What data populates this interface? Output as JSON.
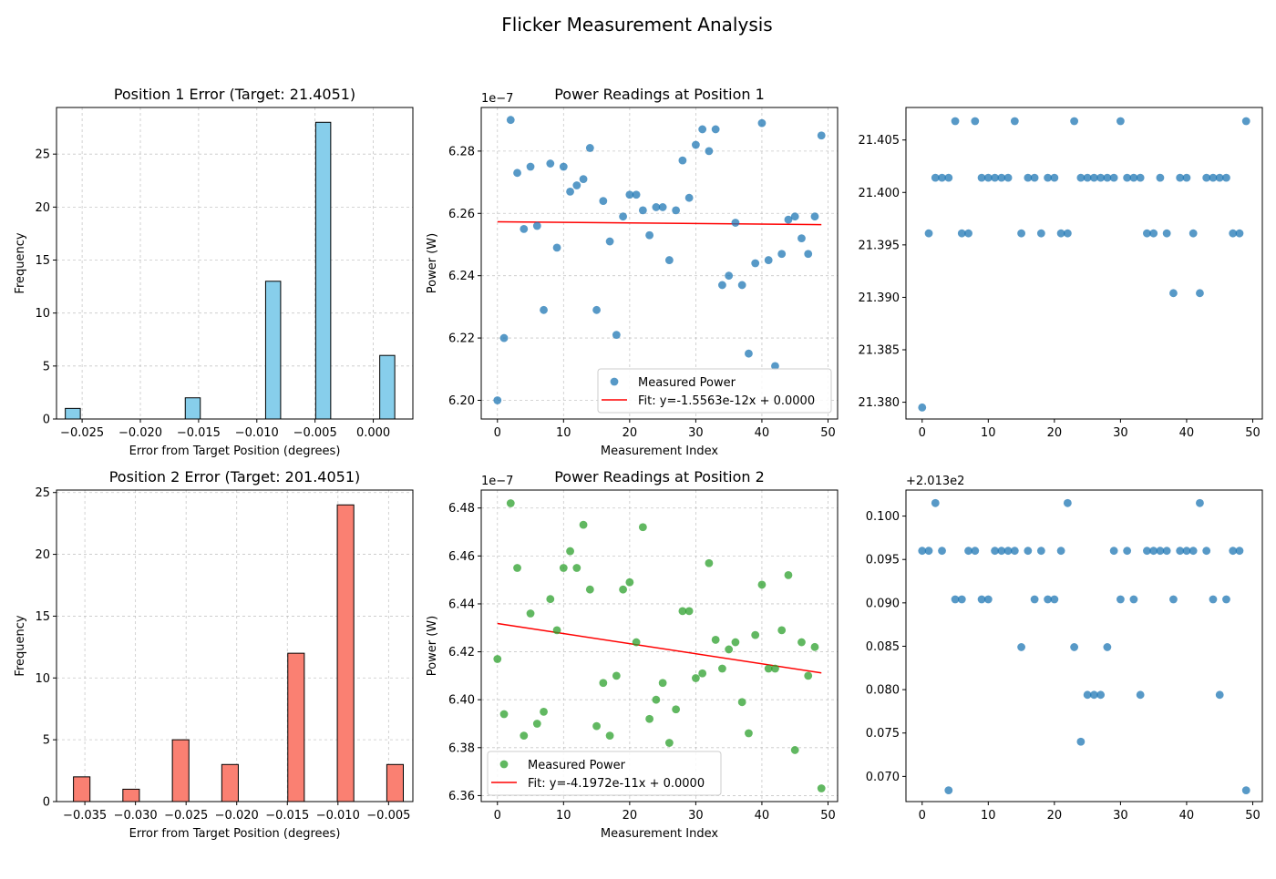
{
  "figure": {
    "title": "Flicker Measurement Analysis"
  },
  "chart_data": [
    {
      "type": "bar",
      "id": "hist1",
      "title": "Position 1 Error (Target: 21.4051)",
      "xlabel": "Error from Target Position (degrees)",
      "ylabel": "Frequency",
      "bar_color": "#87ceeb",
      "xlim": [
        -0.0272,
        0.0034
      ],
      "ylim": [
        0,
        29.4
      ],
      "xticks": [
        -0.025,
        -0.02,
        -0.015,
        -0.01,
        -0.005,
        0.0
      ],
      "xtick_labels": [
        "−0.025",
        "−0.020",
        "−0.015",
        "−0.010",
        "−0.005",
        "0.000"
      ],
      "yticks": [
        0,
        5,
        10,
        15,
        20,
        25
      ],
      "bin_width": 0.00129,
      "bins": [
        {
          "center": -0.0258,
          "count": 1
        },
        {
          "center": -0.0155,
          "count": 2
        },
        {
          "center": -0.0086,
          "count": 13
        },
        {
          "center": -0.0043,
          "count": 28
        },
        {
          "center": 0.0012,
          "count": 6
        }
      ],
      "grid": true
    },
    {
      "type": "scatter",
      "id": "scatter1",
      "title": "Power Readings at Position 1",
      "xlabel": "Measurement Index",
      "ylabel": "Power (W)",
      "offset_label": "1e−7",
      "point_color": "#1f77b4",
      "xlim": [
        -2.45,
        51.45
      ],
      "ylim": [
        6.194,
        6.294
      ],
      "xticks": [
        0,
        10,
        20,
        30,
        40,
        50
      ],
      "yticks": [
        6.2,
        6.22,
        6.24,
        6.26,
        6.28
      ],
      "ytick_labels": [
        "6.20",
        "6.22",
        "6.24",
        "6.26",
        "6.28"
      ],
      "x": [
        0,
        1,
        2,
        3,
        4,
        5,
        6,
        7,
        8,
        9,
        10,
        11,
        12,
        13,
        14,
        15,
        16,
        17,
        18,
        19,
        20,
        21,
        22,
        23,
        24,
        25,
        26,
        27,
        28,
        29,
        30,
        31,
        32,
        33,
        34,
        35,
        36,
        37,
        38,
        39,
        40,
        41,
        42,
        43,
        44,
        45,
        46,
        47,
        48,
        49
      ],
      "y": [
        6.2,
        6.22,
        6.29,
        6.273,
        6.255,
        6.275,
        6.256,
        6.229,
        6.276,
        6.249,
        6.275,
        6.267,
        6.269,
        6.271,
        6.281,
        6.229,
        6.264,
        6.251,
        6.221,
        6.259,
        6.266,
        6.266,
        6.261,
        6.253,
        6.262,
        6.262,
        6.245,
        6.261,
        6.277,
        6.265,
        6.282,
        6.287,
        6.28,
        6.287,
        6.237,
        6.24,
        6.257,
        6.237,
        6.215,
        6.244,
        6.289,
        6.245,
        6.211,
        6.247,
        6.258,
        6.259,
        6.252,
        6.247,
        6.259,
        6.285
      ],
      "fit": {
        "x0": 0,
        "y0": 6.2573,
        "x1": 49,
        "y1": 6.2564
      },
      "legend": {
        "loc": "lower right",
        "series": "Measured Power",
        "fit": "Fit: y=-1.5563e-12x + 0.0000"
      },
      "grid": true
    },
    {
      "type": "scatter",
      "id": "scatter1b",
      "title": "",
      "point_color": "#1f77b4",
      "xlim": [
        -2.45,
        51.45
      ],
      "ylim": [
        21.3784,
        21.4081
      ],
      "xticks": [
        0,
        10,
        20,
        30,
        40,
        50
      ],
      "yticks": [
        21.38,
        21.385,
        21.39,
        21.395,
        21.4,
        21.405
      ],
      "ytick_labels": [
        "21.380",
        "21.385",
        "21.390",
        "21.395",
        "21.400",
        "21.405"
      ],
      "x": [
        0,
        1,
        2,
        3,
        4,
        5,
        6,
        7,
        8,
        9,
        10,
        11,
        12,
        13,
        14,
        15,
        16,
        17,
        18,
        19,
        20,
        21,
        22,
        23,
        24,
        25,
        26,
        27,
        28,
        29,
        30,
        31,
        32,
        33,
        34,
        35,
        36,
        37,
        38,
        39,
        40,
        41,
        42,
        43,
        44,
        45,
        46,
        47,
        48,
        49
      ],
      "y": [
        21.3795,
        21.3961,
        21.4014,
        21.4014,
        21.4014,
        21.4068,
        21.3961,
        21.3961,
        21.4068,
        21.4014,
        21.4014,
        21.4014,
        21.4014,
        21.4014,
        21.4068,
        21.3961,
        21.4014,
        21.4014,
        21.3961,
        21.4014,
        21.4014,
        21.3961,
        21.3961,
        21.4068,
        21.4014,
        21.4014,
        21.4014,
        21.4014,
        21.4014,
        21.4014,
        21.4068,
        21.4014,
        21.4014,
        21.4014,
        21.3961,
        21.3961,
        21.4014,
        21.3961,
        21.3904,
        21.4014,
        21.4014,
        21.3961,
        21.3904,
        21.4014,
        21.4014,
        21.4014,
        21.4014,
        21.3961,
        21.3961,
        21.4068
      ],
      "grid": false
    },
    {
      "type": "bar",
      "id": "hist2",
      "title": "Position 2 Error (Target: 201.4051)",
      "xlabel": "Error from Target Position (degrees)",
      "ylabel": "Frequency",
      "bar_color": "#fa8072",
      "xlim": [
        -0.0378,
        -0.0026
      ],
      "ylim": [
        0,
        25.2
      ],
      "xticks": [
        -0.035,
        -0.03,
        -0.025,
        -0.02,
        -0.015,
        -0.01,
        -0.005
      ],
      "xtick_labels": [
        "−0.035",
        "−0.030",
        "−0.025",
        "−0.020",
        "−0.015",
        "−0.010",
        "−0.005"
      ],
      "yticks": [
        0,
        5,
        10,
        15,
        20,
        25
      ],
      "bin_width": 0.00163,
      "bins": [
        {
          "center": -0.03531,
          "count": 2
        },
        {
          "center": -0.03043,
          "count": 1
        },
        {
          "center": -0.02554,
          "count": 5
        },
        {
          "center": -0.02066,
          "count": 3
        },
        {
          "center": -0.01414,
          "count": 12
        },
        {
          "center": -0.00925,
          "count": 24
        },
        {
          "center": -0.00436,
          "count": 3
        }
      ],
      "grid": true
    },
    {
      "type": "scatter",
      "id": "scatter2",
      "title": "Power Readings at Position 2",
      "xlabel": "Measurement Index",
      "ylabel": "Power (W)",
      "offset_label": "1e−7",
      "point_color": "#2ca02c",
      "xlim": [
        -2.45,
        51.45
      ],
      "ylim": [
        6.3575,
        6.4875
      ],
      "xticks": [
        0,
        10,
        20,
        30,
        40,
        50
      ],
      "yticks": [
        6.36,
        6.38,
        6.4,
        6.42,
        6.44,
        6.46,
        6.48
      ],
      "ytick_labels": [
        "6.36",
        "6.38",
        "6.40",
        "6.42",
        "6.44",
        "6.46",
        "6.48"
      ],
      "x": [
        0,
        1,
        2,
        3,
        4,
        5,
        6,
        7,
        8,
        9,
        10,
        11,
        12,
        13,
        14,
        15,
        16,
        17,
        18,
        19,
        20,
        21,
        22,
        23,
        24,
        25,
        26,
        27,
        28,
        29,
        30,
        31,
        32,
        33,
        34,
        35,
        36,
        37,
        38,
        39,
        40,
        41,
        42,
        43,
        44,
        45,
        46,
        47,
        48,
        49
      ],
      "y": [
        6.417,
        6.394,
        6.482,
        6.455,
        6.385,
        6.436,
        6.39,
        6.395,
        6.442,
        6.429,
        6.455,
        6.462,
        6.455,
        6.473,
        6.446,
        6.389,
        6.407,
        6.385,
        6.41,
        6.446,
        6.449,
        6.424,
        6.472,
        6.392,
        6.4,
        6.407,
        6.382,
        6.396,
        6.437,
        6.437,
        6.409,
        6.411,
        6.457,
        6.425,
        6.413,
        6.421,
        6.424,
        6.399,
        6.386,
        6.427,
        6.448,
        6.413,
        6.413,
        6.429,
        6.452,
        6.379,
        6.424,
        6.41,
        6.422,
        6.363
      ],
      "fit": {
        "x0": 0,
        "y0": 6.4318,
        "x1": 49,
        "y1": 6.4112
      },
      "legend": {
        "loc": "lower left",
        "series": "Measured Power",
        "fit": "Fit: y=-4.1972e-11x + 0.0000"
      },
      "grid": true
    },
    {
      "type": "scatter",
      "id": "scatter2b",
      "title": "",
      "offset_label": "+2.013e2",
      "point_color": "#1f77b4",
      "xlim": [
        -2.45,
        51.45
      ],
      "ylim": [
        0.0671,
        0.103
      ],
      "xticks": [
        0,
        10,
        20,
        30,
        40,
        50
      ],
      "yticks": [
        0.07,
        0.075,
        0.08,
        0.085,
        0.09,
        0.095,
        0.1
      ],
      "ytick_labels": [
        "0.070",
        "0.075",
        "0.080",
        "0.085",
        "0.090",
        "0.095",
        "0.100"
      ],
      "x": [
        0,
        1,
        2,
        3,
        4,
        5,
        6,
        7,
        8,
        9,
        10,
        11,
        12,
        13,
        14,
        15,
        16,
        17,
        18,
        19,
        20,
        21,
        22,
        23,
        24,
        25,
        26,
        27,
        28,
        29,
        30,
        31,
        32,
        33,
        34,
        35,
        36,
        37,
        38,
        39,
        40,
        41,
        42,
        43,
        44,
        45,
        46,
        47,
        48,
        49
      ],
      "y": [
        0.096,
        0.096,
        0.1015,
        0.096,
        0.0684,
        0.0904,
        0.0904,
        0.096,
        0.096,
        0.0904,
        0.0904,
        0.096,
        0.096,
        0.096,
        0.096,
        0.0849,
        0.096,
        0.0904,
        0.096,
        0.0904,
        0.0904,
        0.096,
        0.1015,
        0.0849,
        0.074,
        0.0794,
        0.0794,
        0.0794,
        0.0849,
        0.096,
        0.0904,
        0.096,
        0.0904,
        0.0794,
        0.096,
        0.096,
        0.096,
        0.096,
        0.0904,
        0.096,
        0.096,
        0.096,
        0.1015,
        0.096,
        0.0904,
        0.0794,
        0.0904,
        0.096,
        0.096,
        0.0684
      ],
      "grid": false
    }
  ]
}
